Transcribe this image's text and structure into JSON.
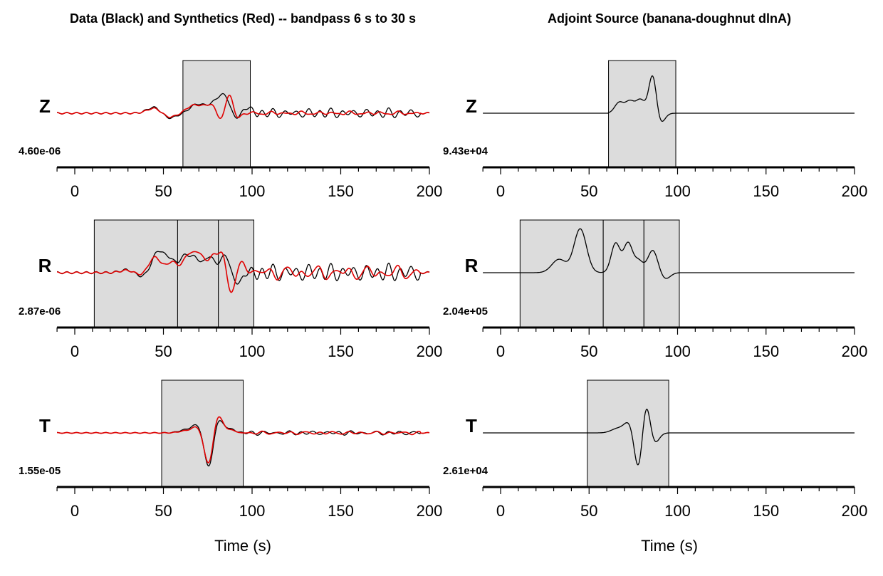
{
  "titles": {
    "left": "Data (Black) and Synthetics (Red) -- bandpass 6 s to 30 s",
    "right": "Adjoint Source (banana-doughnut dlnA)"
  },
  "xlabel": "Time (s)",
  "colors": {
    "data": "#000000",
    "synthetic": "#e00000",
    "window_fill": "#dcdcdc",
    "adjoint": "#000000"
  },
  "chart_data": [
    {
      "type": "line",
      "panel": "seismogram",
      "component": "Z",
      "scale_label": "4.60e-06",
      "xlim": [
        -10,
        200
      ],
      "ticks": [
        0,
        50,
        100,
        150,
        200
      ],
      "windows": [
        [
          61,
          99
        ]
      ],
      "series": [
        {
          "key": "data",
          "color": "#000000",
          "events": [
            [
              45,
              0.12,
              4
            ],
            [
              53,
              -0.1,
              4
            ],
            [
              68,
              0.14,
              3.5
            ],
            [
              74,
              0.1,
              3.5
            ],
            [
              80,
              0.18,
              3
            ],
            [
              85,
              0.3,
              3
            ],
            [
              91,
              -0.15,
              3
            ],
            [
              96,
              0.12,
              3
            ]
          ],
          "noise": {
            "start": 100,
            "end": 195,
            "amp": 0.06,
            "period": 6.5,
            "amp2": 0.025,
            "period2": 11
          },
          "pre_noise": 0.015
        },
        {
          "key": "synthetic",
          "color": "#e00000",
          "events": [
            [
              45,
              0.1,
              4
            ],
            [
              53,
              -0.08,
              4
            ],
            [
              66,
              0.12,
              3.5
            ],
            [
              72,
              0.1,
              3.5
            ],
            [
              78,
              0.15,
              3
            ],
            [
              84,
              -0.3,
              3
            ],
            [
              87,
              0.62,
              2.5
            ],
            [
              90,
              -0.2,
              2.5
            ]
          ],
          "noise": {
            "start": 100,
            "end": 195,
            "amp": 0.02,
            "period": 9,
            "amp2": 0.01,
            "period2": 14
          },
          "pre_noise": 0.012
        }
      ]
    },
    {
      "type": "line",
      "panel": "adjoint",
      "component": "Z",
      "scale_label": "9.43e+04",
      "xlim": [
        -10,
        200
      ],
      "ticks": [
        0,
        50,
        100,
        150,
        200
      ],
      "windows": [
        [
          61,
          99
        ]
      ],
      "series": [
        {
          "key": "adjoint",
          "color": "#000000",
          "support": [
            61,
            99
          ],
          "events": [
            [
              67,
              0.2,
              2.5
            ],
            [
              73,
              0.22,
              2.5
            ],
            [
              79,
              0.25,
              2.5
            ],
            [
              86,
              0.75,
              2.2
            ],
            [
              90,
              -0.22,
              2.5
            ]
          ]
        }
      ]
    },
    {
      "type": "line",
      "panel": "seismogram",
      "component": "R",
      "scale_label": "2.87e-06",
      "xlim": [
        -10,
        200
      ],
      "ticks": [
        0,
        50,
        100,
        150,
        200
      ],
      "windows": [
        [
          11,
          58
        ],
        [
          58,
          81
        ],
        [
          81,
          101
        ]
      ],
      "series": [
        {
          "key": "data",
          "color": "#000000",
          "events": [
            [
              30,
              0.06,
              4
            ],
            [
              38,
              -0.08,
              4
            ],
            [
              47,
              0.4,
              3.5
            ],
            [
              54,
              0.22,
              3
            ],
            [
              62,
              0.3,
              2.8
            ],
            [
              68,
              0.26,
              2.8
            ],
            [
              76,
              0.3,
              2.8
            ],
            [
              85,
              0.34,
              2.8
            ],
            [
              91,
              -0.22,
              2.8
            ]
          ],
          "noise": {
            "start": 100,
            "end": 195,
            "amp": 0.11,
            "period": 6.5,
            "amp2": 0.05,
            "period2": 11
          },
          "pre_noise": 0.02
        },
        {
          "key": "synthetic",
          "color": "#e00000",
          "events": [
            [
              30,
              0.05,
              4
            ],
            [
              38,
              -0.06,
              4
            ],
            [
              45,
              0.3,
              3.5
            ],
            [
              55,
              0.2,
              3
            ],
            [
              64,
              0.32,
              2.8
            ],
            [
              70,
              0.35,
              2.8
            ],
            [
              78,
              0.3,
              2.8
            ],
            [
              84,
              0.42,
              2.6
            ],
            [
              88,
              -0.55,
              2.6
            ],
            [
              93,
              0.25,
              2.8
            ]
          ],
          "noise": {
            "start": 100,
            "end": 195,
            "amp": 0.07,
            "period": 9,
            "amp2": 0.06,
            "period2": 15
          },
          "pre_noise": 0.015
        }
      ]
    },
    {
      "type": "line",
      "panel": "adjoint",
      "component": "R",
      "scale_label": "2.04e+05",
      "xlim": [
        -10,
        200
      ],
      "ticks": [
        0,
        50,
        100,
        150,
        200
      ],
      "windows": [
        [
          11,
          58
        ],
        [
          58,
          81
        ],
        [
          81,
          101
        ]
      ],
      "series": [
        {
          "key": "adjoint",
          "color": "#000000",
          "support": [
            11,
            101
          ],
          "events": [
            [
              33,
              0.25,
              4
            ],
            [
              45,
              0.82,
              3.5
            ],
            [
              65,
              0.55,
              2.5
            ],
            [
              72,
              0.55,
              2.5
            ],
            [
              78,
              0.22,
              2.5
            ],
            [
              86,
              0.42,
              2.8
            ],
            [
              93,
              -0.12,
              2.8
            ]
          ]
        }
      ]
    },
    {
      "type": "line",
      "panel": "seismogram",
      "component": "T",
      "scale_label": "1.55e-05",
      "xlim": [
        -10,
        200
      ],
      "ticks": [
        0,
        50,
        100,
        150,
        200
      ],
      "windows": [
        [
          49,
          95
        ]
      ],
      "series": [
        {
          "key": "data",
          "color": "#000000",
          "events": [
            [
              63,
              0.06,
              4
            ],
            [
              70,
              0.18,
              3
            ],
            [
              76,
              -0.75,
              3
            ],
            [
              80,
              0.42,
              2.6
            ],
            [
              87,
              0.08,
              3
            ]
          ],
          "noise": {
            "start": 95,
            "end": 195,
            "amp": 0.025,
            "period": 7,
            "amp2": 0.012,
            "period2": 12
          },
          "pre_noise": 0.008
        },
        {
          "key": "synthetic",
          "color": "#e00000",
          "events": [
            [
              63,
              0.04,
              4
            ],
            [
              70,
              0.14,
              3
            ],
            [
              76,
              -0.7,
              3
            ],
            [
              80,
              0.5,
              2.6
            ],
            [
              87,
              0.06,
              3
            ]
          ],
          "noise": {
            "start": 95,
            "end": 195,
            "amp": 0.018,
            "period": 8,
            "amp2": 0.01,
            "period2": 13
          },
          "pre_noise": 0.006
        }
      ]
    },
    {
      "type": "line",
      "panel": "adjoint",
      "component": "T",
      "scale_label": "2.61e+04",
      "xlim": [
        -10,
        200
      ],
      "ticks": [
        0,
        50,
        100,
        150,
        200
      ],
      "windows": [
        [
          49,
          95
        ]
      ],
      "series": [
        {
          "key": "adjoint",
          "color": "#000000",
          "support": [
            49,
            95
          ],
          "events": [
            [
              66,
              0.08,
              3.5
            ],
            [
              73,
              0.22,
              3
            ],
            [
              78,
              -0.78,
              2.5
            ],
            [
              82,
              0.65,
              2.3
            ],
            [
              87,
              -0.2,
              2.5
            ]
          ]
        }
      ]
    }
  ]
}
